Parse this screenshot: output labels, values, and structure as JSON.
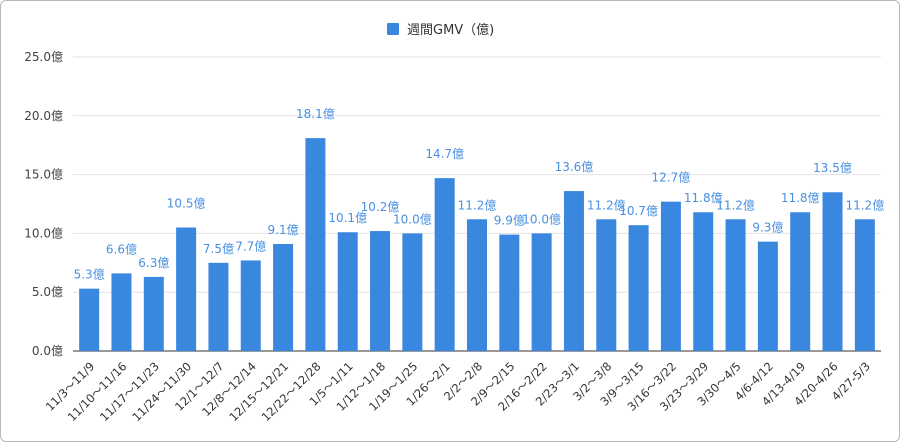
{
  "chart_data": {
    "type": "bar",
    "legend": {
      "label": "週間GMV（億)",
      "position": "top"
    },
    "series": [
      {
        "name": "週間GMV（億)",
        "color": "#3a87e0",
        "values": [
          5.3,
          6.6,
          6.3,
          10.5,
          7.5,
          7.7,
          9.1,
          18.1,
          10.1,
          10.2,
          10.0,
          14.7,
          11.2,
          9.9,
          10.0,
          13.6,
          11.2,
          10.7,
          12.7,
          11.8,
          11.2,
          9.3,
          11.8,
          13.5,
          11.2
        ]
      }
    ],
    "categories": [
      "11/3〜11/9",
      "11/10〜11/16",
      "11/17〜11/23",
      "11/24〜11/30",
      "12/1〜12/7",
      "12/8〜12/14",
      "12/15〜12/21",
      "12/22〜12/28",
      "1/5〜1/11",
      "1/12〜1/18",
      "1/19〜1/25",
      "1/26〜2/1",
      "2/2〜2/8",
      "2/9〜2/15",
      "2/16〜2/22",
      "2/23〜3/1",
      "3/2〜3/8",
      "3/9〜3/15",
      "3/16〜3/22",
      "3/23〜3/29",
      "3/30〜4/5",
      "4/6-4/12",
      "4/13-4/19",
      "4/20-4/26",
      "4/27-5/3"
    ],
    "data_labels": [
      "5.3億",
      "6.6億",
      "6.3億",
      "10.5億",
      "7.5億",
      "7.7億",
      "9.1億",
      "18.1億",
      "10.1億",
      "10.2億",
      "10.0億",
      "14.7億",
      "11.2億",
      "9.9億",
      "10.0億",
      "13.6億",
      "11.2億",
      "10.7億",
      "12.7億",
      "11.8億",
      "11.2億",
      "9.3億",
      "11.8億",
      "13.5億",
      "11.2億"
    ],
    "y_ticks": [
      "0.0億",
      "5.0億",
      "10.0億",
      "15.0億",
      "20.0億",
      "25.0億"
    ],
    "ylim": [
      0,
      25
    ],
    "grid": true
  }
}
